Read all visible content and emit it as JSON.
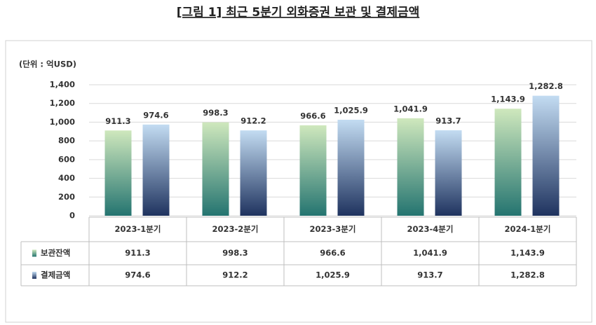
{
  "chart_data": {
    "type": "bar",
    "title": "[그림 1] 최근 5분기 외화증권 보관 및 결제금액",
    "y_label": "(단위 : 억USD)",
    "categories": [
      "2023-1분기",
      "2023-2분기",
      "2023-3분기",
      "2023-4분기",
      "2024-1분기"
    ],
    "series": [
      {
        "name": "보관잔액",
        "color": "#5aa58a",
        "gradient": [
          "#cfe8bd",
          "#247470"
        ],
        "values": [
          911.3,
          998.3,
          966.6,
          1041.9,
          1143.9
        ],
        "value_labels": [
          "911.3",
          "998.3",
          "966.6",
          "1,041.9",
          "1,143.9"
        ]
      },
      {
        "name": "결제금액",
        "color": "#5b7fb0",
        "gradient": [
          "#c3dcf2",
          "#1f335f"
        ],
        "values": [
          974.6,
          912.2,
          1025.9,
          913.7,
          1282.8
        ],
        "value_labels": [
          "974.6",
          "912.2",
          "1,025.9",
          "913.7",
          "1,282.8"
        ]
      }
    ],
    "ylim": [
      0,
      1400
    ],
    "yticks": [
      0,
      200,
      400,
      600,
      800,
      {
        "value": 1000,
        "label": "1,000"
      },
      {
        "value": 1200,
        "label": "1,200"
      },
      {
        "value": 1400,
        "label": "1,400"
      }
    ],
    "grid": true,
    "data_table": true
  }
}
